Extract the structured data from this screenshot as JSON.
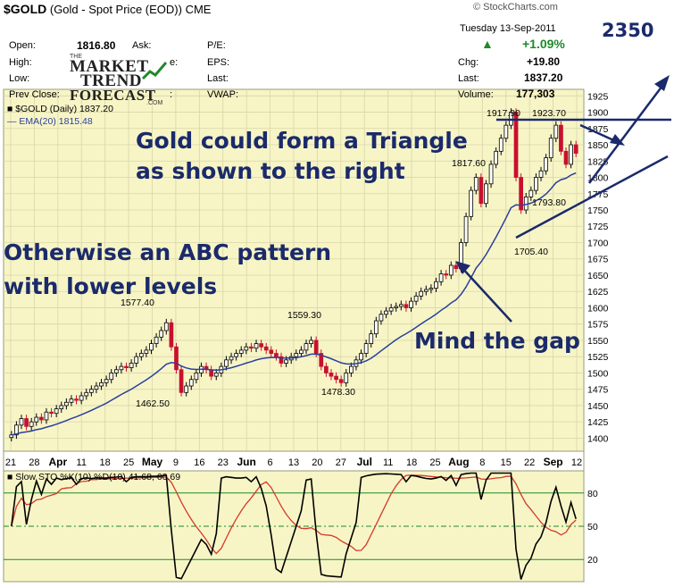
{
  "header": {
    "symbol": "$GOLD",
    "description": "(Gold - Spot Price (EOD))",
    "exchange": "CME",
    "watermark": "© StockCharts.com",
    "date": "Tuesday  13-Sep-2011",
    "change_pct": "+1.09%",
    "quote_left": [
      {
        "label": "Open:",
        "value": "1816.80"
      },
      {
        "label": "High:",
        "value": ""
      },
      {
        "label": "Low:",
        "value": ""
      },
      {
        "label": "Prev Close:",
        "value": ""
      }
    ],
    "quote_mid": [
      "Ask:",
      "P/E:",
      "EPS:",
      "Last:",
      "VWAP:"
    ],
    "quote_right": [
      {
        "label": "Chg:",
        "value": "+19.80"
      },
      {
        "label": "Last:",
        "value": "1837.20"
      },
      {
        "label": "Volume:",
        "value": "177,303"
      }
    ],
    "legend_price": "$GOLD (Daily) 1837.20",
    "legend_ema": "EMA(20) 1815.48"
  },
  "logo": {
    "line1": "THE",
    "line2": "MARKET",
    "line3": "TREND",
    "line4": "FORECAST",
    "line5": ".COM"
  },
  "annotations": {
    "target": "2350",
    "triangle": [
      "Gold could form a Triangle",
      "as shown to the right"
    ],
    "abc": [
      "Otherwise an ABC pattern",
      "with lower levels"
    ],
    "gap": "Mind the gap"
  },
  "colors": {
    "background": "#f7f5c6",
    "up": "#000000",
    "down": "#c8102e",
    "ema": "#2b3f9e",
    "annotation": "#1a2a6b",
    "stoch_k": "#000000",
    "stoch_d": "#d43a2a",
    "grid": "#d8d6a8"
  },
  "chart_data": [
    {
      "type": "candlestick",
      "title": "$GOLD (Gold - Spot Price (EOD))",
      "y_ticks": [
        1400,
        1425,
        1450,
        1475,
        1500,
        1525,
        1550,
        1575,
        1600,
        1625,
        1650,
        1675,
        1700,
        1725,
        1750,
        1775,
        1800,
        1825,
        1850,
        1875,
        1900,
        1925
      ],
      "ylim": [
        1380,
        1935
      ],
      "x_tick_labels": [
        "21",
        "28",
        "Apr",
        "11",
        "18",
        "25",
        "May",
        "9",
        "16",
        "23",
        "Jun",
        "6",
        "13",
        "20",
        "27",
        "Jul",
        "11",
        "18",
        "25",
        "Aug",
        "8",
        "15",
        "22",
        "Sep",
        "12"
      ],
      "price_labels": [
        {
          "label": "1577.40",
          "value": 1577.4
        },
        {
          "label": "1462.50",
          "value": 1462.5
        },
        {
          "label": "1559.30",
          "value": 1559.3
        },
        {
          "label": "1478.30",
          "value": 1478.3
        },
        {
          "label": "1817.60",
          "value": 1817.6
        },
        {
          "label": "1917.90",
          "value": 1917.9
        },
        {
          "label": "1923.70",
          "value": 1923.7
        },
        {
          "label": "1705.40",
          "value": 1705.4
        },
        {
          "label": "1793.80",
          "value": 1793.8
        }
      ],
      "close_series": [
        1405,
        1420,
        1430,
        1418,
        1425,
        1432,
        1428,
        1440,
        1438,
        1445,
        1450,
        1455,
        1460,
        1458,
        1465,
        1470,
        1475,
        1480,
        1485,
        1490,
        1500,
        1505,
        1510,
        1508,
        1515,
        1525,
        1530,
        1535,
        1545,
        1555,
        1565,
        1577,
        1540,
        1505,
        1470,
        1480,
        1490,
        1500,
        1510,
        1505,
        1495,
        1500,
        1510,
        1520,
        1525,
        1530,
        1535,
        1540,
        1538,
        1545,
        1540,
        1535,
        1530,
        1525,
        1515,
        1520,
        1525,
        1530,
        1535,
        1545,
        1550,
        1530,
        1510,
        1500,
        1495,
        1490,
        1485,
        1500,
        1510,
        1520,
        1530,
        1545,
        1560,
        1580,
        1590,
        1595,
        1600,
        1602,
        1605,
        1600,
        1610,
        1618,
        1625,
        1628,
        1630,
        1640,
        1652,
        1650,
        1665,
        1660,
        1700,
        1740,
        1780,
        1800,
        1760,
        1790,
        1820,
        1840,
        1860,
        1880,
        1900,
        1800,
        1750,
        1770,
        1780,
        1800,
        1810,
        1830,
        1860,
        1880,
        1840,
        1820,
        1850,
        1837
      ],
      "ema_label": "EMA(20)",
      "ema_value": 1815.48,
      "last": 1837.2
    },
    {
      "type": "line",
      "title": "Slow STO %K(10) %D(10) 41.68, 60.69",
      "series": [
        {
          "name": "%K(10)",
          "last": 41.68
        },
        {
          "name": "%D(10)",
          "last": 60.69
        }
      ],
      "y_ticks": [
        20,
        50,
        80
      ],
      "ylim": [
        0,
        100
      ]
    }
  ]
}
